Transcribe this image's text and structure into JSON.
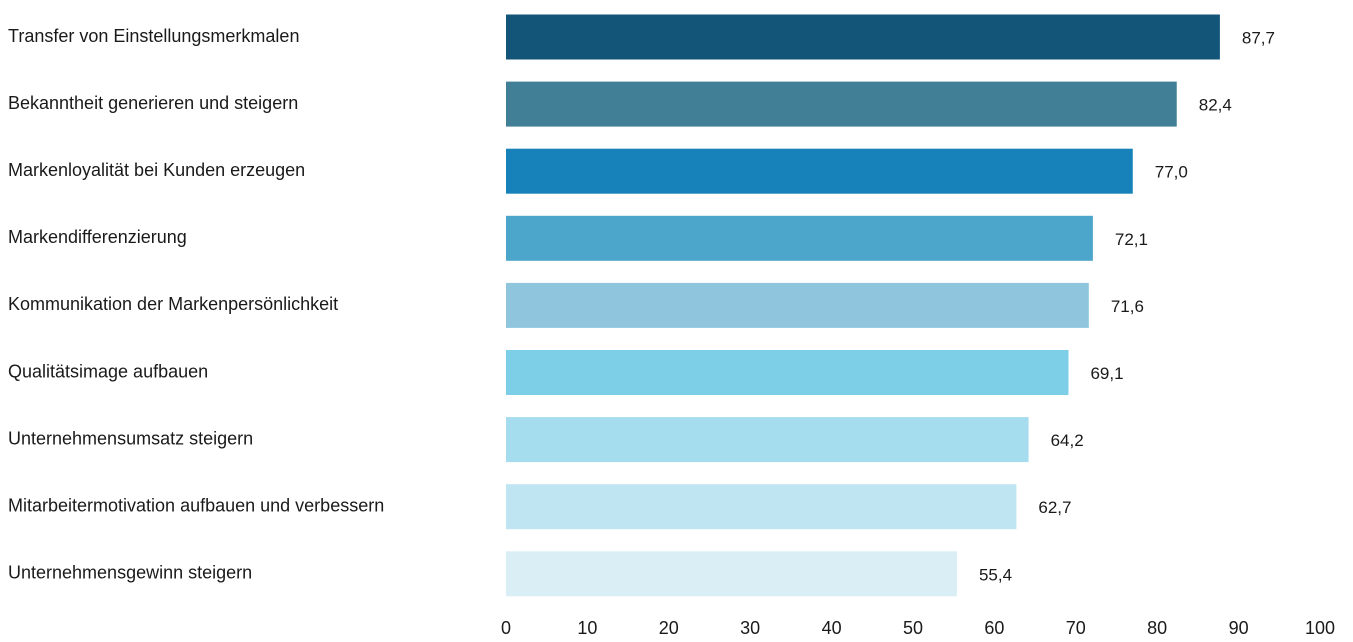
{
  "chart_data": {
    "type": "bar",
    "orientation": "horizontal",
    "categories": [
      "Transfer von Einstellungsmerkmalen",
      "Bekanntheit generieren und steigern",
      "Markenloyalität bei Kunden erzeugen",
      "Markendifferenzierung",
      "Kommunikation der Markenpersönlichkeit",
      "Qualitätsimage aufbauen",
      "Unternehmensumsatz steigern",
      "Mitarbeitermotivation aufbauen und verbessern",
      "Unternehmensgewinn steigern"
    ],
    "values": [
      87.7,
      82.4,
      77.0,
      72.1,
      71.6,
      69.1,
      64.2,
      62.7,
      55.4
    ],
    "value_labels": [
      "87,7",
      "82,4",
      "77,0",
      "72,1",
      "71,6",
      "69,1",
      "64,2",
      "62,7",
      "55,4"
    ],
    "colors": [
      "#135578",
      "#417f97",
      "#1782b9",
      "#4ca6cb",
      "#8fc6de",
      "#7dcfe8",
      "#a5ddee",
      "#bfe5f3",
      "#d9eff5"
    ],
    "xlim": [
      0,
      100
    ],
    "xticks": [
      0,
      10,
      20,
      30,
      40,
      50,
      60,
      70,
      80,
      90,
      100
    ],
    "grid": false,
    "title": "",
    "xlabel": "",
    "ylabel": ""
  }
}
